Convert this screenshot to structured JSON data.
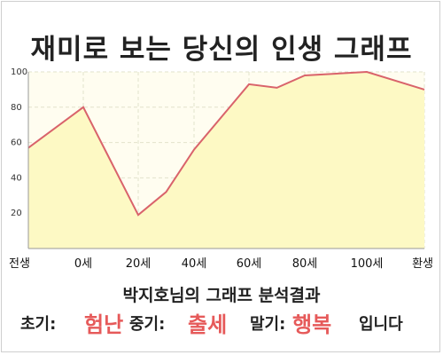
{
  "title": "재미로 보는 당신의 인생 그래프",
  "subtitle": "박지호님의 그래프 분석결과",
  "result": {
    "early_label": "초기:",
    "early_value": "험난",
    "middle_label": "중기:",
    "middle_value": "출세",
    "late_label": "말기:",
    "late_value": "행복",
    "suffix": "입니다"
  },
  "colors": {
    "line": "#d9636b",
    "fill": "#fdf9c4",
    "plot_background": "#fffdf0",
    "grid": "#e2e2cc",
    "highlight": "#e65a5a"
  },
  "chart_data": {
    "type": "area",
    "x_ticks": [
      "전생",
      "0세",
      "20세",
      "40세",
      "60세",
      "80세",
      "100세",
      "환생"
    ],
    "y_ticks": [
      20,
      40,
      60,
      80,
      100
    ],
    "ylim": [
      0,
      100
    ],
    "grid": true,
    "points": [
      {
        "x": "전생",
        "y": 57
      },
      {
        "x": "0세",
        "y": 80
      },
      {
        "x": "20세",
        "y": 19
      },
      {
        "x": "30세",
        "y": 32
      },
      {
        "x": "40세",
        "y": 56
      },
      {
        "x": "60세",
        "y": 93
      },
      {
        "x": "70세",
        "y": 91
      },
      {
        "x": "80세",
        "y": 98
      },
      {
        "x": "100세",
        "y": 100
      },
      {
        "x": "환생",
        "y": 90
      }
    ]
  }
}
